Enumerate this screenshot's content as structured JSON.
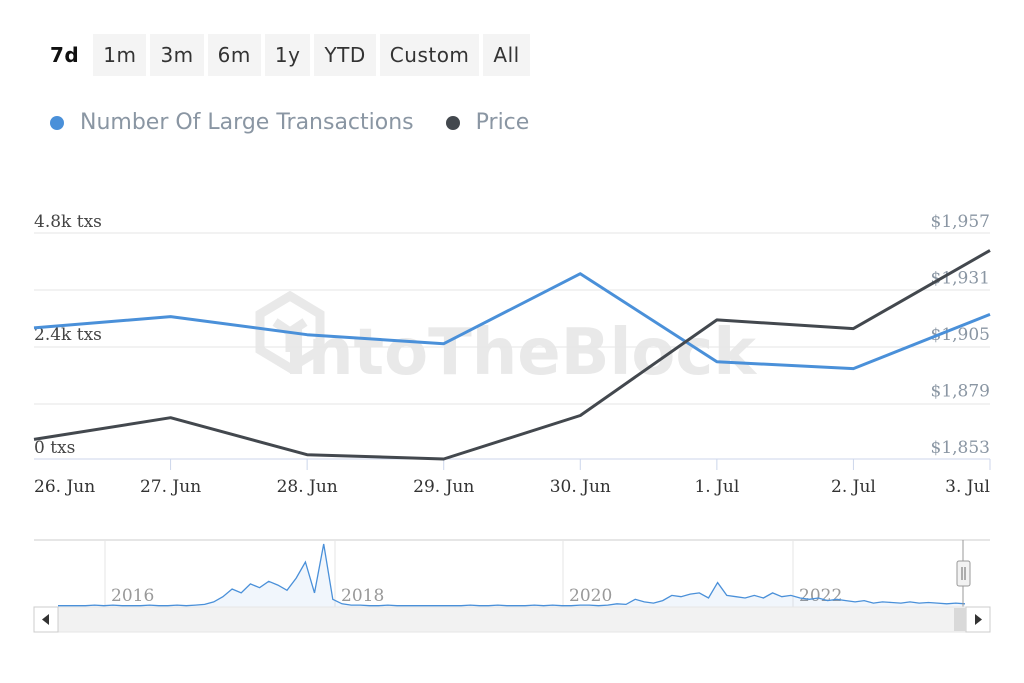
{
  "range_selector": {
    "buttons": [
      "7d",
      "1m",
      "3m",
      "6m",
      "1y",
      "YTD",
      "Custom",
      "All"
    ],
    "active": "7d"
  },
  "colors": {
    "large_tx": "#4a90d9",
    "price": "#43484e",
    "grid": "#e6e6e6",
    "axis_text_left": "#444444",
    "axis_text_right": "#8a96a3",
    "watermark": "#e9e9e9"
  },
  "watermark": "IntoTheBlock",
  "chart_data": [
    {
      "type": "line",
      "categories": [
        "26. Jun",
        "27. Jun",
        "28. Jun",
        "29. Jun",
        "30. Jun",
        "1. Jul",
        "2. Jul",
        "3. Jul"
      ],
      "series": [
        {
          "name": "Number Of Large Transactions",
          "axis": "left",
          "color": "#4a90d9",
          "values": [
            2900,
            3150,
            2750,
            2550,
            4100,
            2150,
            2000,
            3200
          ]
        },
        {
          "name": "Price",
          "axis": "right",
          "color": "#43484e",
          "values": [
            1862,
            1872,
            1855,
            1853,
            1873,
            1917,
            1913,
            1949
          ]
        }
      ],
      "y_left": {
        "ticks": [
          "0 txs",
          "2.4k txs",
          "4.8k txs"
        ],
        "ylim": [
          0,
          5000
        ]
      },
      "y_right": {
        "ticks": [
          "$1,853",
          "$1,879",
          "$1,905",
          "$1,931",
          "$1,957"
        ],
        "ylim": [
          1853,
          1957
        ]
      },
      "legend_position": "top-left",
      "grid": true
    },
    {
      "type": "area",
      "role": "navigator",
      "tick_labels": [
        "2016",
        "2018",
        "2020",
        "2022"
      ],
      "values": [
        2,
        2,
        2,
        2,
        3,
        2,
        3,
        2,
        2,
        2,
        3,
        2,
        2,
        3,
        2,
        3,
        4,
        8,
        16,
        28,
        22,
        36,
        30,
        40,
        34,
        26,
        45,
        70,
        22,
        98,
        12,
        5,
        3,
        3,
        2,
        2,
        3,
        2,
        2,
        2,
        2,
        2,
        2,
        2,
        2,
        3,
        2,
        2,
        3,
        2,
        2,
        2,
        3,
        2,
        3,
        2,
        2,
        3,
        3,
        2,
        3,
        5,
        4,
        12,
        8,
        6,
        10,
        18,
        16,
        20,
        22,
        14,
        38,
        18,
        16,
        14,
        18,
        14,
        22,
        16,
        18,
        14,
        12,
        14,
        10,
        12,
        10,
        8,
        10,
        6,
        8,
        7,
        6,
        8,
        6,
        7,
        6,
        5,
        6,
        5
      ]
    }
  ]
}
